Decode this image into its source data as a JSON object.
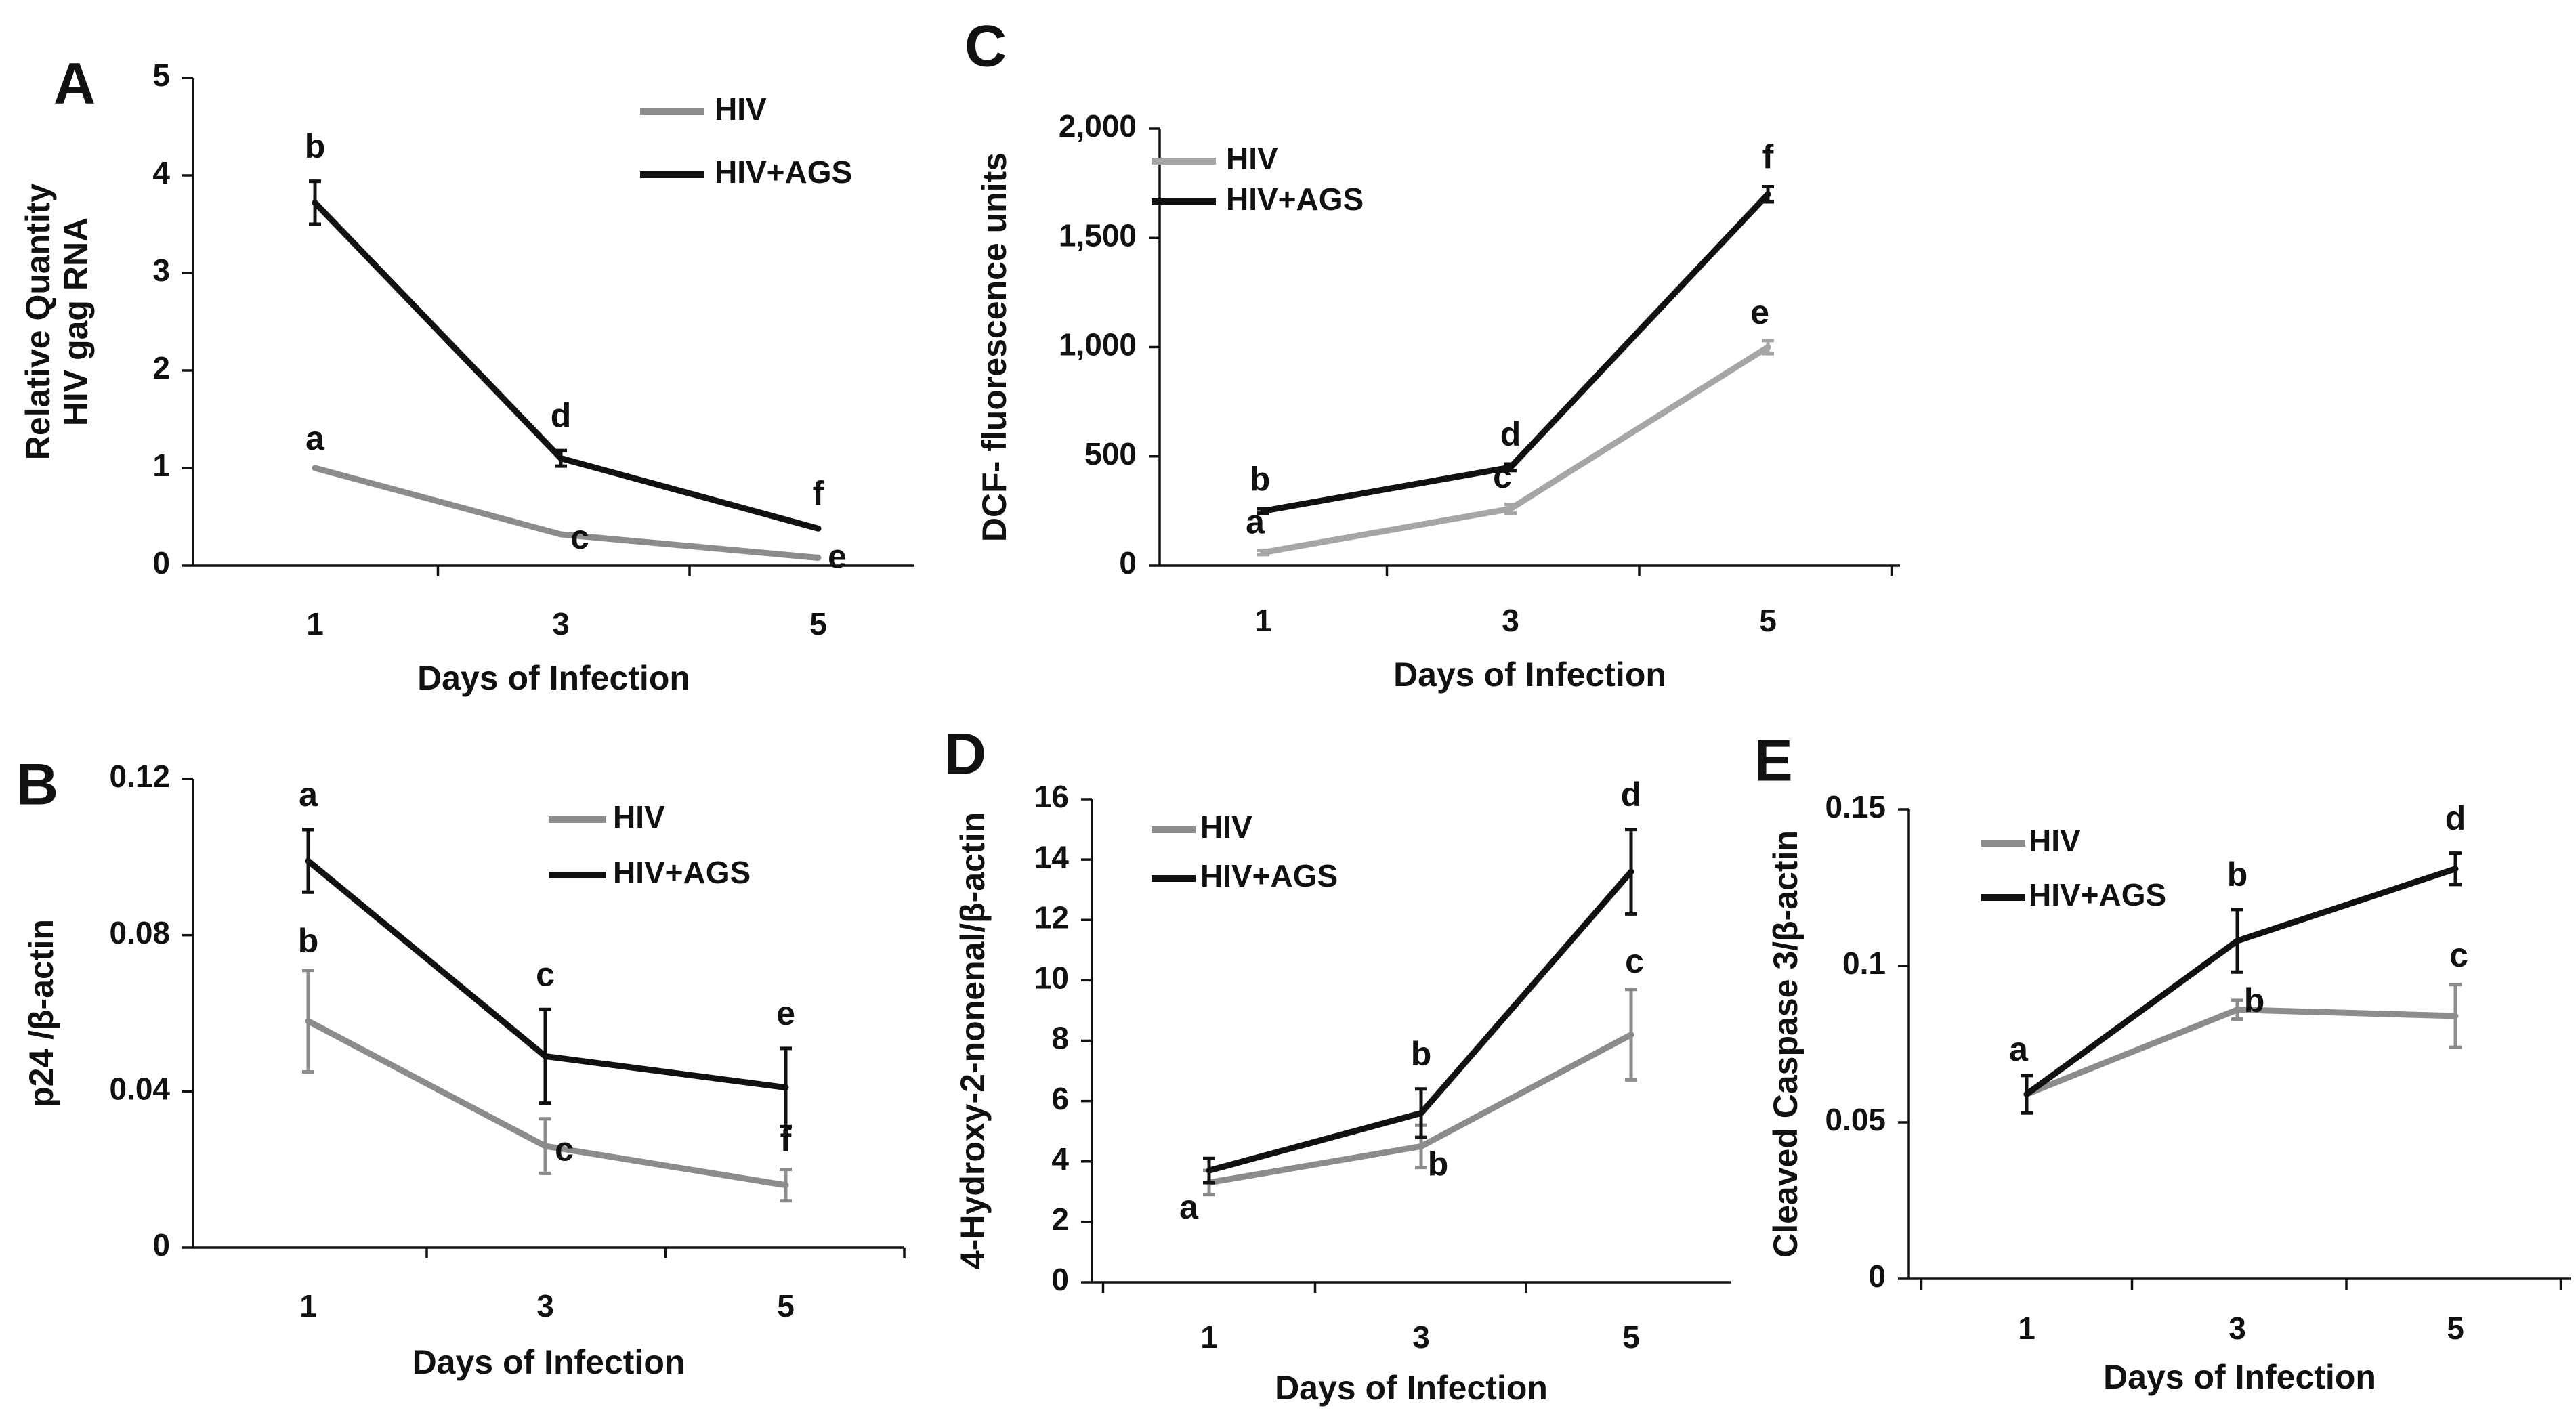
{
  "colors": {
    "hiv": "#8c8c8c",
    "hiv_ags": "#111111",
    "marker_blue": "#5b8fc9"
  },
  "chart_data": [
    {
      "id": "A",
      "panel_label": "A",
      "type": "line",
      "ylabel_lines": [
        "Relative Quantity",
        "HIV gag RNA"
      ],
      "xlabel": "Days of Infection",
      "categories": [
        "1",
        "3",
        "5"
      ],
      "ylim": [
        0,
        5
      ],
      "yticks": [
        {
          "v": 0,
          "t": "0"
        },
        {
          "v": 1,
          "t": "1"
        },
        {
          "v": 2,
          "t": "2"
        },
        {
          "v": 3,
          "t": "3"
        },
        {
          "v": 4,
          "t": "4"
        },
        {
          "v": 5,
          "t": "5"
        }
      ],
      "legend": [
        "HIV",
        "HIV+AGS"
      ],
      "series": [
        {
          "name": "HIV",
          "color": "#8c8c8c",
          "values": [
            1.0,
            0.32,
            0.08
          ],
          "errors": [
            0,
            0,
            0
          ],
          "letters": [
            "a",
            "c",
            "e"
          ]
        },
        {
          "name": "HIV+AGS",
          "color": "#111111",
          "values": [
            3.72,
            1.1,
            0.38
          ],
          "errors": [
            0.22,
            0.08,
            0
          ],
          "letters": [
            "b",
            "d",
            "f"
          ]
        }
      ]
    },
    {
      "id": "B",
      "panel_label": "B",
      "type": "line",
      "ylabel_lines": [
        "p24 /β-actin"
      ],
      "xlabel": "Days of Infection",
      "categories": [
        "1",
        "3",
        "5"
      ],
      "ylim": [
        0,
        0.12
      ],
      "yticks": [
        {
          "v": 0,
          "t": "0"
        },
        {
          "v": 0.04,
          "t": "0.04"
        },
        {
          "v": 0.08,
          "t": "0.08"
        },
        {
          "v": 0.12,
          "t": "0.12"
        }
      ],
      "legend": [
        "HIV",
        "HIV+AGS"
      ],
      "series": [
        {
          "name": "HIV",
          "color": "#8c8c8c",
          "values": [
            0.058,
            0.026,
            0.016
          ],
          "errors": [
            0.013,
            0.007,
            0.004
          ],
          "letters": [
            "b",
            "c",
            "f"
          ]
        },
        {
          "name": "HIV+AGS",
          "color": "#111111",
          "values": [
            0.099,
            0.049,
            0.041
          ],
          "errors": [
            0.008,
            0.012,
            0.01
          ],
          "letters": [
            "a",
            "c",
            "e"
          ]
        }
      ]
    },
    {
      "id": "C",
      "panel_label": "C",
      "type": "line",
      "ylabel_lines": [
        "DCF- fluorescence units"
      ],
      "xlabel": "Days of Infection",
      "categories": [
        "1",
        "3",
        "5"
      ],
      "ylim": [
        0,
        2000
      ],
      "yticks": [
        {
          "v": 0,
          "t": "0"
        },
        {
          "v": 500,
          "t": "500"
        },
        {
          "v": 1000,
          "t": "1,000"
        },
        {
          "v": 1500,
          "t": "1,500"
        },
        {
          "v": 2000,
          "t": "2,000"
        }
      ],
      "legend": [
        "HIV",
        "HIV+AGS"
      ],
      "series": [
        {
          "name": "HIV",
          "color": "#a6a6a6",
          "values": [
            60,
            260,
            1000
          ],
          "errors": [
            10,
            20,
            30
          ],
          "letters": [
            "a",
            "c",
            "e"
          ]
        },
        {
          "name": "HIV+AGS",
          "color": "#111111",
          "values": [
            250,
            450,
            1700
          ],
          "errors": [
            10,
            15,
            35
          ],
          "letters": [
            "b",
            "d",
            "f"
          ]
        }
      ]
    },
    {
      "id": "D",
      "panel_label": "D",
      "type": "line",
      "ylabel_lines": [
        "4-Hydroxy-2-nonenal/β-actin"
      ],
      "xlabel": "Days of Infection",
      "categories": [
        "1",
        "3",
        "5"
      ],
      "ylim": [
        0,
        16
      ],
      "yticks": [
        {
          "v": 0,
          "t": "0"
        },
        {
          "v": 2,
          "t": "2"
        },
        {
          "v": 4,
          "t": "4"
        },
        {
          "v": 6,
          "t": "6"
        },
        {
          "v": 8,
          "t": "8"
        },
        {
          "v": 10,
          "t": "10"
        },
        {
          "v": 12,
          "t": "12"
        },
        {
          "v": 14,
          "t": "14"
        },
        {
          "v": 16,
          "t": "16"
        }
      ],
      "legend": [
        "HIV",
        "HIV+AGS"
      ],
      "series": [
        {
          "name": "HIV",
          "color": "#8c8c8c",
          "values": [
            3.3,
            4.5,
            8.2
          ],
          "errors": [
            0.4,
            0.7,
            1.5
          ],
          "letters": [
            "a",
            "b",
            "c"
          ]
        },
        {
          "name": "HIV+AGS",
          "color": "#111111",
          "values": [
            3.7,
            5.6,
            13.6
          ],
          "errors": [
            0.4,
            0.8,
            1.4
          ],
          "letters": [
            "",
            "b",
            "d"
          ]
        }
      ]
    },
    {
      "id": "E",
      "panel_label": "E",
      "type": "line",
      "ylabel_lines": [
        "Cleaved Caspase 3/β-actin"
      ],
      "xlabel": "Days of Infection",
      "categories": [
        "1",
        "3",
        "5"
      ],
      "ylim": [
        0,
        0.15
      ],
      "yticks": [
        {
          "v": 0,
          "t": "0"
        },
        {
          "v": 0.05,
          "t": "0.05"
        },
        {
          "v": 0.1,
          "t": "0.1"
        },
        {
          "v": 0.15,
          "t": "0.15"
        }
      ],
      "legend": [
        "HIV",
        "HIV+AGS"
      ],
      "series": [
        {
          "name": "HIV",
          "color": "#8c8c8c",
          "values": [
            0.059,
            0.086,
            0.084
          ],
          "errors": [
            0.006,
            0.003,
            0.01
          ],
          "letters": [
            "",
            "b",
            "c"
          ]
        },
        {
          "name": "HIV+AGS",
          "color": "#111111",
          "values": [
            0.059,
            0.108,
            0.131
          ],
          "errors": [
            0.006,
            0.01,
            0.005
          ],
          "letters": [
            "a",
            "b",
            "d"
          ]
        }
      ]
    }
  ]
}
